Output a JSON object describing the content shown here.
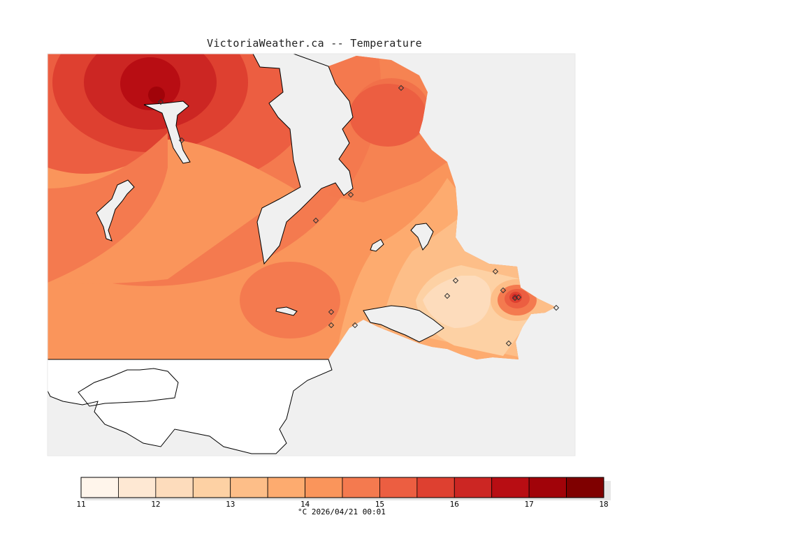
{
  "title": "VictoriaWeather.ca -- Temperature",
  "footer": "°C 2026/04/21 00:01",
  "colorbar": {
    "min": 11,
    "max": 18,
    "step": 0.5,
    "tick_labels": [
      "11",
      "12",
      "13",
      "14",
      "15",
      "16",
      "17",
      "18"
    ],
    "colors": [
      "#fff5eb",
      "#fee8d3",
      "#fddcbc",
      "#fdd1a4",
      "#fdbe88",
      "#fdab6f",
      "#fa955b",
      "#f47a4f",
      "#ec5e41",
      "#de4030",
      "#cc2623",
      "#b80d13",
      "#a10309",
      "#7f0000"
    ]
  },
  "stations": [
    "s1",
    "s2",
    "s3",
    "s4",
    "s5",
    "s6",
    "s7",
    "s8",
    "s9",
    "s10",
    "s11",
    "s12",
    "s13",
    "s14",
    "s15",
    "s16"
  ]
}
